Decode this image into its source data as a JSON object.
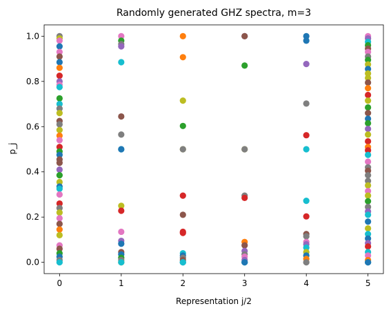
{
  "chart_data": {
    "type": "scatter",
    "title": "Randomly generated GHZ spectra, m=3",
    "xlabel": "Representation j/2",
    "ylabel": "p_j",
    "xlim": [
      -0.25,
      5.25
    ],
    "ylim": [
      -0.05,
      1.05
    ],
    "xticks": [
      0,
      1,
      2,
      3,
      4,
      5
    ],
    "yticks": [
      0.0,
      0.2,
      0.4,
      0.6,
      0.8,
      1.0
    ],
    "xtick_labels": [
      "0",
      "1",
      "2",
      "3",
      "4",
      "5"
    ],
    "ytick_labels": [
      "0.0",
      "0.2",
      "0.4",
      "0.6",
      "0.8",
      "1.0"
    ],
    "grid": false,
    "legend": "none",
    "palette": [
      "#1f77b4",
      "#ff7f0e",
      "#2ca02c",
      "#d62728",
      "#9467bd",
      "#8c564b",
      "#e377c2",
      "#7f7f7f",
      "#bcbd22",
      "#17becf"
    ],
    "points": [
      {
        "x": 0,
        "y": 1.0,
        "c": 7
      },
      {
        "x": 0,
        "y": 0.99,
        "c": 8
      },
      {
        "x": 0,
        "y": 0.98,
        "c": 6
      },
      {
        "x": 0,
        "y": 0.955,
        "c": 0
      },
      {
        "x": 0,
        "y": 0.93,
        "c": 6
      },
      {
        "x": 0,
        "y": 0.91,
        "c": 5
      },
      {
        "x": 0,
        "y": 0.885,
        "c": 0
      },
      {
        "x": 0,
        "y": 0.86,
        "c": 1
      },
      {
        "x": 0,
        "y": 0.825,
        "c": 3
      },
      {
        "x": 0,
        "y": 0.8,
        "c": 4
      },
      {
        "x": 0,
        "y": 0.785,
        "c": 6
      },
      {
        "x": 0,
        "y": 0.775,
        "c": 9
      },
      {
        "x": 0,
        "y": 0.725,
        "c": 2
      },
      {
        "x": 0,
        "y": 0.7,
        "c": 9
      },
      {
        "x": 0,
        "y": 0.68,
        "c": 7
      },
      {
        "x": 0,
        "y": 0.66,
        "c": 8
      },
      {
        "x": 0,
        "y": 0.625,
        "c": 5
      },
      {
        "x": 0,
        "y": 0.61,
        "c": 7
      },
      {
        "x": 0,
        "y": 0.585,
        "c": 8
      },
      {
        "x": 0,
        "y": 0.56,
        "c": 1
      },
      {
        "x": 0,
        "y": 0.54,
        "c": 6
      },
      {
        "x": 0,
        "y": 0.51,
        "c": 3
      },
      {
        "x": 0,
        "y": 0.49,
        "c": 2
      },
      {
        "x": 0,
        "y": 0.475,
        "c": 0
      },
      {
        "x": 0,
        "y": 0.455,
        "c": 5
      },
      {
        "x": 0,
        "y": 0.44,
        "c": 5
      },
      {
        "x": 0,
        "y": 0.41,
        "c": 4
      },
      {
        "x": 0,
        "y": 0.385,
        "c": 2
      },
      {
        "x": 0,
        "y": 0.355,
        "c": 8
      },
      {
        "x": 0,
        "y": 0.335,
        "c": 0
      },
      {
        "x": 0,
        "y": 0.325,
        "c": 9
      },
      {
        "x": 0,
        "y": 0.3,
        "c": 6
      },
      {
        "x": 0,
        "y": 0.26,
        "c": 3
      },
      {
        "x": 0,
        "y": 0.24,
        "c": 7
      },
      {
        "x": 0,
        "y": 0.22,
        "c": 8
      },
      {
        "x": 0,
        "y": 0.195,
        "c": 6
      },
      {
        "x": 0,
        "y": 0.17,
        "c": 5
      },
      {
        "x": 0,
        "y": 0.145,
        "c": 1
      },
      {
        "x": 0,
        "y": 0.12,
        "c": 8
      },
      {
        "x": 0,
        "y": 0.075,
        "c": 6
      },
      {
        "x": 0,
        "y": 0.06,
        "c": 5
      },
      {
        "x": 0,
        "y": 0.04,
        "c": 2
      },
      {
        "x": 0,
        "y": 0.025,
        "c": 0
      },
      {
        "x": 0,
        "y": 0.01,
        "c": 7
      },
      {
        "x": 0,
        "y": 0.0,
        "c": 9
      },
      {
        "x": 1,
        "y": 1.0,
        "c": 6
      },
      {
        "x": 1,
        "y": 0.98,
        "c": 2
      },
      {
        "x": 1,
        "y": 0.965,
        "c": 7
      },
      {
        "x": 1,
        "y": 0.955,
        "c": 4
      },
      {
        "x": 1,
        "y": 0.885,
        "c": 9
      },
      {
        "x": 1,
        "y": 0.645,
        "c": 5
      },
      {
        "x": 1,
        "y": 0.565,
        "c": 7
      },
      {
        "x": 1,
        "y": 0.5,
        "c": 9
      },
      {
        "x": 1,
        "y": 0.5,
        "c": 0
      },
      {
        "x": 1,
        "y": 0.25,
        "c": 8
      },
      {
        "x": 1,
        "y": 0.228,
        "c": 3
      },
      {
        "x": 1,
        "y": 0.135,
        "c": 6
      },
      {
        "x": 1,
        "y": 0.095,
        "c": 4
      },
      {
        "x": 1,
        "y": 0.082,
        "c": 0
      },
      {
        "x": 1,
        "y": 0.045,
        "c": 5
      },
      {
        "x": 1,
        "y": 0.035,
        "c": 0
      },
      {
        "x": 1,
        "y": 0.02,
        "c": 2
      },
      {
        "x": 1,
        "y": 0.01,
        "c": 7
      },
      {
        "x": 1,
        "y": 0.0,
        "c": 8
      },
      {
        "x": 1,
        "y": 0.0,
        "c": 9
      },
      {
        "x": 2,
        "y": 1.0,
        "c": 1
      },
      {
        "x": 2,
        "y": 0.907,
        "c": 1
      },
      {
        "x": 2,
        "y": 0.715,
        "c": 8
      },
      {
        "x": 2,
        "y": 0.603,
        "c": 2
      },
      {
        "x": 2,
        "y": 0.5,
        "c": 8
      },
      {
        "x": 2,
        "y": 0.5,
        "c": 7
      },
      {
        "x": 2,
        "y": 0.295,
        "c": 3
      },
      {
        "x": 2,
        "y": 0.21,
        "c": 5
      },
      {
        "x": 2,
        "y": 0.135,
        "c": 3
      },
      {
        "x": 2,
        "y": 0.13,
        "c": 3
      },
      {
        "x": 2,
        "y": 0.04,
        "c": 9
      },
      {
        "x": 2,
        "y": 0.03,
        "c": 0
      },
      {
        "x": 2,
        "y": 0.02,
        "c": 7
      },
      {
        "x": 2,
        "y": 0.01,
        "c": 5
      },
      {
        "x": 2,
        "y": 0.0,
        "c": 0
      },
      {
        "x": 2,
        "y": 0.0,
        "c": 9
      },
      {
        "x": 3,
        "y": 1.0,
        "c": 4
      },
      {
        "x": 3,
        "y": 1.0,
        "c": 5
      },
      {
        "x": 3,
        "y": 0.87,
        "c": 2
      },
      {
        "x": 3,
        "y": 0.5,
        "c": 8
      },
      {
        "x": 3,
        "y": 0.5,
        "c": 7
      },
      {
        "x": 3,
        "y": 0.295,
        "c": 7
      },
      {
        "x": 3,
        "y": 0.285,
        "c": 3
      },
      {
        "x": 3,
        "y": 0.09,
        "c": 1
      },
      {
        "x": 3,
        "y": 0.075,
        "c": 5
      },
      {
        "x": 3,
        "y": 0.05,
        "c": 4
      },
      {
        "x": 3,
        "y": 0.035,
        "c": 7
      },
      {
        "x": 3,
        "y": 0.025,
        "c": 6
      },
      {
        "x": 3,
        "y": 0.01,
        "c": 4
      },
      {
        "x": 3,
        "y": 0.0,
        "c": 9
      },
      {
        "x": 3,
        "y": 0.0,
        "c": 0
      },
      {
        "x": 4,
        "y": 1.0,
        "c": 0
      },
      {
        "x": 4,
        "y": 0.98,
        "c": 0
      },
      {
        "x": 4,
        "y": 0.877,
        "c": 4
      },
      {
        "x": 4,
        "y": 0.702,
        "c": 7
      },
      {
        "x": 4,
        "y": 0.562,
        "c": 3
      },
      {
        "x": 4,
        "y": 0.5,
        "c": 9
      },
      {
        "x": 4,
        "y": 0.272,
        "c": 9
      },
      {
        "x": 4,
        "y": 0.203,
        "c": 3
      },
      {
        "x": 4,
        "y": 0.125,
        "c": 5
      },
      {
        "x": 4,
        "y": 0.115,
        "c": 7
      },
      {
        "x": 4,
        "y": 0.09,
        "c": 6
      },
      {
        "x": 4,
        "y": 0.08,
        "c": 4
      },
      {
        "x": 4,
        "y": 0.065,
        "c": 9
      },
      {
        "x": 4,
        "y": 0.045,
        "c": 8
      },
      {
        "x": 4,
        "y": 0.03,
        "c": 0
      },
      {
        "x": 4,
        "y": 0.015,
        "c": 1
      },
      {
        "x": 4,
        "y": 0.0,
        "c": 7
      },
      {
        "x": 5,
        "y": 1.0,
        "c": 6
      },
      {
        "x": 5,
        "y": 0.99,
        "c": 4
      },
      {
        "x": 5,
        "y": 0.975,
        "c": 9
      },
      {
        "x": 5,
        "y": 0.96,
        "c": 2
      },
      {
        "x": 5,
        "y": 0.945,
        "c": 5
      },
      {
        "x": 5,
        "y": 0.93,
        "c": 6
      },
      {
        "x": 5,
        "y": 0.91,
        "c": 7
      },
      {
        "x": 5,
        "y": 0.895,
        "c": 2
      },
      {
        "x": 5,
        "y": 0.875,
        "c": 8
      },
      {
        "x": 5,
        "y": 0.855,
        "c": 0
      },
      {
        "x": 5,
        "y": 0.835,
        "c": 8
      },
      {
        "x": 5,
        "y": 0.815,
        "c": 8
      },
      {
        "x": 5,
        "y": 0.795,
        "c": 5
      },
      {
        "x": 5,
        "y": 0.77,
        "c": 1
      },
      {
        "x": 5,
        "y": 0.74,
        "c": 3
      },
      {
        "x": 5,
        "y": 0.715,
        "c": 8
      },
      {
        "x": 5,
        "y": 0.685,
        "c": 2
      },
      {
        "x": 5,
        "y": 0.66,
        "c": 5
      },
      {
        "x": 5,
        "y": 0.635,
        "c": 0
      },
      {
        "x": 5,
        "y": 0.615,
        "c": 2
      },
      {
        "x": 5,
        "y": 0.59,
        "c": 4
      },
      {
        "x": 5,
        "y": 0.565,
        "c": 8
      },
      {
        "x": 5,
        "y": 0.535,
        "c": 3
      },
      {
        "x": 5,
        "y": 0.51,
        "c": 1
      },
      {
        "x": 5,
        "y": 0.495,
        "c": 3
      },
      {
        "x": 5,
        "y": 0.475,
        "c": 9
      },
      {
        "x": 5,
        "y": 0.445,
        "c": 6
      },
      {
        "x": 5,
        "y": 0.42,
        "c": 7
      },
      {
        "x": 5,
        "y": 0.405,
        "c": 5
      },
      {
        "x": 5,
        "y": 0.385,
        "c": 7
      },
      {
        "x": 5,
        "y": 0.36,
        "c": 7
      },
      {
        "x": 5,
        "y": 0.34,
        "c": 8
      },
      {
        "x": 5,
        "y": 0.315,
        "c": 6
      },
      {
        "x": 5,
        "y": 0.295,
        "c": 8
      },
      {
        "x": 5,
        "y": 0.27,
        "c": 2
      },
      {
        "x": 5,
        "y": 0.245,
        "c": 7
      },
      {
        "x": 5,
        "y": 0.225,
        "c": 4
      },
      {
        "x": 5,
        "y": 0.21,
        "c": 9
      },
      {
        "x": 5,
        "y": 0.18,
        "c": 0
      },
      {
        "x": 5,
        "y": 0.15,
        "c": 8
      },
      {
        "x": 5,
        "y": 0.125,
        "c": 9
      },
      {
        "x": 5,
        "y": 0.105,
        "c": 0
      },
      {
        "x": 5,
        "y": 0.085,
        "c": 4
      },
      {
        "x": 5,
        "y": 0.07,
        "c": 3
      },
      {
        "x": 5,
        "y": 0.045,
        "c": 9
      },
      {
        "x": 5,
        "y": 0.03,
        "c": 6
      },
      {
        "x": 5,
        "y": 0.01,
        "c": 1
      },
      {
        "x": 5,
        "y": 0.0,
        "c": 9
      },
      {
        "x": 5,
        "y": 0.0,
        "c": 0
      }
    ]
  }
}
